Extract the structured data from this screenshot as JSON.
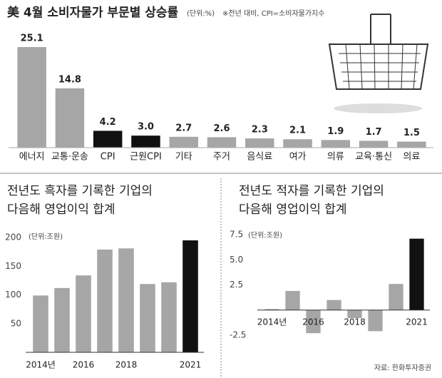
{
  "chart_data": [
    {
      "type": "bar",
      "title": "美 4월 소비자물가 부문별 상승률",
      "unit": "(단위:%)",
      "note": "※전년 대비, CPI=소비자물가지수",
      "categories": [
        "에너지",
        "교통·운송",
        "CPI",
        "근원CPI",
        "기타",
        "주거",
        "음식료",
        "여가",
        "의류",
        "교육·통신",
        "의료"
      ],
      "values": [
        25.1,
        14.8,
        4.2,
        3.0,
        2.7,
        2.6,
        2.3,
        2.1,
        1.9,
        1.7,
        1.5
      ],
      "value_labels": [
        "25.1",
        "14.8",
        "4.2",
        "3.0",
        "2.7",
        "2.6",
        "2.3",
        "2.1",
        "1.9",
        "1.7",
        "1.5"
      ],
      "colors": [
        "#a6a6a6",
        "#a6a6a6",
        "#111111",
        "#111111",
        "#a6a6a6",
        "#a6a6a6",
        "#a6a6a6",
        "#a6a6a6",
        "#a6a6a6",
        "#a6a6a6",
        "#a6a6a6"
      ]
    },
    {
      "type": "bar",
      "title": [
        "전년도 흑자를 기록한 기업의",
        "다음해 영업이익 합계"
      ],
      "unit": "(단위:조원)",
      "categories": [
        "2014년",
        null,
        "2016",
        null,
        "2018",
        null,
        null,
        "2021"
      ],
      "values": [
        99,
        112,
        134,
        179,
        181,
        119,
        122,
        195
      ],
      "colors": [
        "#a6a6a6",
        "#a6a6a6",
        "#a6a6a6",
        "#a6a6a6",
        "#a6a6a6",
        "#a6a6a6",
        "#a6a6a6",
        "#111111"
      ],
      "ylim": [
        0,
        200
      ],
      "yticks": [
        200,
        150,
        100,
        50
      ]
    },
    {
      "type": "bar",
      "title": [
        "전년도 적자를 기록한 기업의",
        "다음해 영업이익 합계"
      ],
      "unit": "(단위:조원)",
      "source": "자료: 한화투자증권",
      "categories": [
        "2014년",
        null,
        "2016",
        null,
        "2018",
        null,
        null,
        "2021"
      ],
      "values": [
        0.1,
        1.9,
        -2.3,
        1.0,
        -0.8,
        -2.1,
        2.6,
        7.1
      ],
      "colors": [
        "#a6a6a6",
        "#a6a6a6",
        "#a6a6a6",
        "#a6a6a6",
        "#a6a6a6",
        "#a6a6a6",
        "#a6a6a6",
        "#111111"
      ],
      "ylim": [
        -2.5,
        7.5
      ],
      "yticks": [
        7.5,
        {
          "value": 5,
          "label": "5.0"
        },
        2.5,
        -2.5
      ]
    }
  ]
}
